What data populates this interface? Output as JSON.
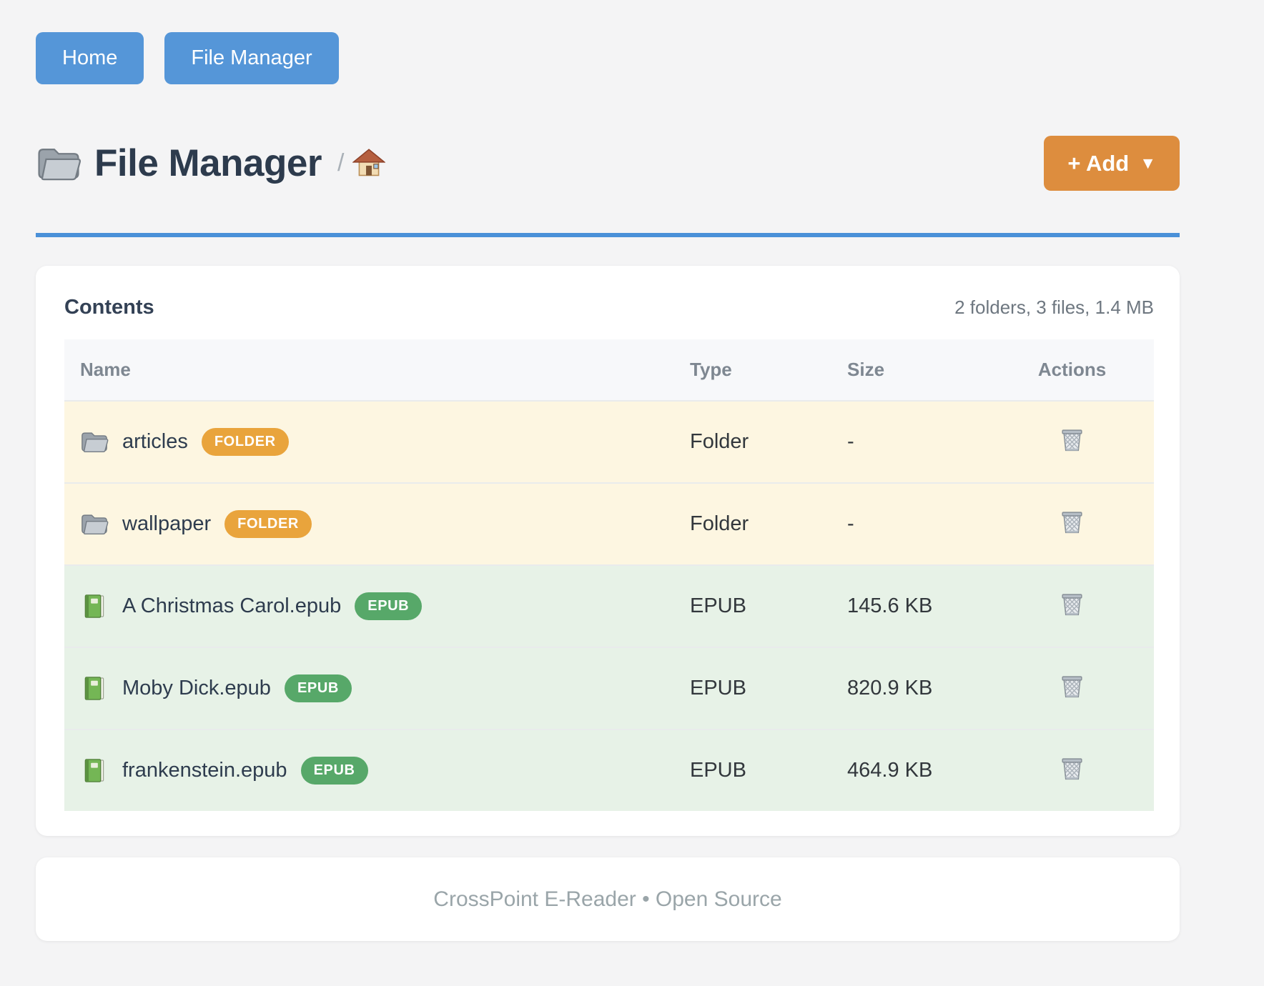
{
  "nav": {
    "buttons": [
      {
        "label": "Home"
      },
      {
        "label": "File Manager"
      }
    ]
  },
  "header": {
    "title_icon": "folder-icon",
    "title": "File Manager",
    "breadcrumb_separator": "/",
    "breadcrumb_home_icon": "house-icon",
    "add_button": {
      "label": "+ Add",
      "caret": "▼"
    }
  },
  "content": {
    "card_title": "Contents",
    "summary": "2 folders, 3 files, 1.4 MB",
    "table": {
      "columns": [
        "Name",
        "Type",
        "Size",
        "Actions"
      ],
      "action_icon": "trash-icon",
      "rows": [
        {
          "icon": "folder-icon",
          "name": "articles",
          "badge": "FOLDER",
          "kind": "folder",
          "type": "Folder",
          "size": "-"
        },
        {
          "icon": "folder-icon",
          "name": "wallpaper",
          "badge": "FOLDER",
          "kind": "folder",
          "type": "Folder",
          "size": "-"
        },
        {
          "icon": "book-icon",
          "name": "A Christmas Carol.epub",
          "badge": "EPUB",
          "kind": "file",
          "type": "EPUB",
          "size": "145.6 KB"
        },
        {
          "icon": "book-icon",
          "name": "Moby Dick.epub",
          "badge": "EPUB",
          "kind": "file",
          "type": "EPUB",
          "size": "820.9 KB"
        },
        {
          "icon": "book-icon",
          "name": "frankenstein.epub",
          "badge": "EPUB",
          "kind": "file",
          "type": "EPUB",
          "size": "464.9 KB"
        }
      ]
    }
  },
  "footer": {
    "text": "CrossPoint E-Reader • Open Source"
  },
  "colors": {
    "page_background": "#f4f4f5",
    "primary_blue": "#5596d8",
    "divider_blue": "#4a90d8",
    "accent_orange": "#dd8d3e",
    "badge_orange": "#e9a43c",
    "badge_green": "#57a869",
    "folder_row_background": "#fdf6e1",
    "file_row_background": "#e7f2e7"
  }
}
